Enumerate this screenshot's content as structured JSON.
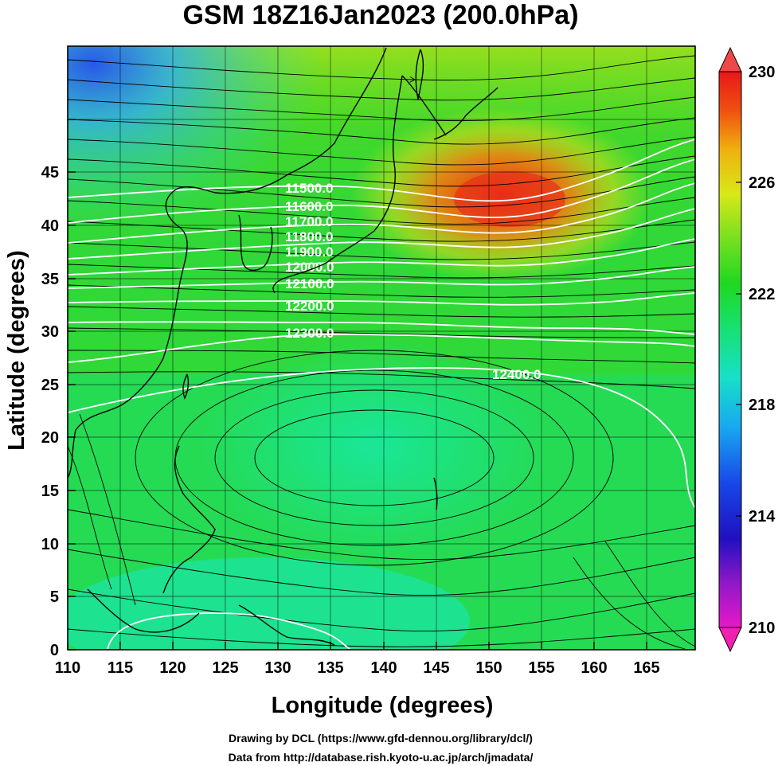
{
  "title": "GSM 18Z16Jan2023 (200.0hPa)",
  "xlabel": "Longitude (degrees)",
  "ylabel": "Latitude  (degrees)",
  "x_ticks": [
    "110",
    "115",
    "120",
    "125",
    "130",
    "135",
    "140",
    "145",
    "150",
    "155",
    "160",
    "165"
  ],
  "y_ticks": [
    "0",
    "5",
    "10",
    "15",
    "20",
    "25",
    "30",
    "35",
    "40",
    "45"
  ],
  "colorbar_ticks": [
    "230",
    "226",
    "222",
    "218",
    "214",
    "210"
  ],
  "contour_labels": [
    "11500.0",
    "11600.0",
    "11700.0",
    "11800.0",
    "11900.0",
    "12000.0",
    "12100.0",
    "12200.0",
    "12300.0",
    "12400.0"
  ],
  "credits": {
    "line1": "Drawing by DCL (https://www.gfd-dennou.org/library/dcl/)",
    "line2": "Data from http://database.rish.kyoto-u.ac.jp/arch/jmadata/"
  },
  "colors": {
    "background_field": "#28d828",
    "warm_max": "#e83018",
    "cool_min": "#2850e8",
    "contour": "#ffffff",
    "streamline": "#000000"
  }
}
